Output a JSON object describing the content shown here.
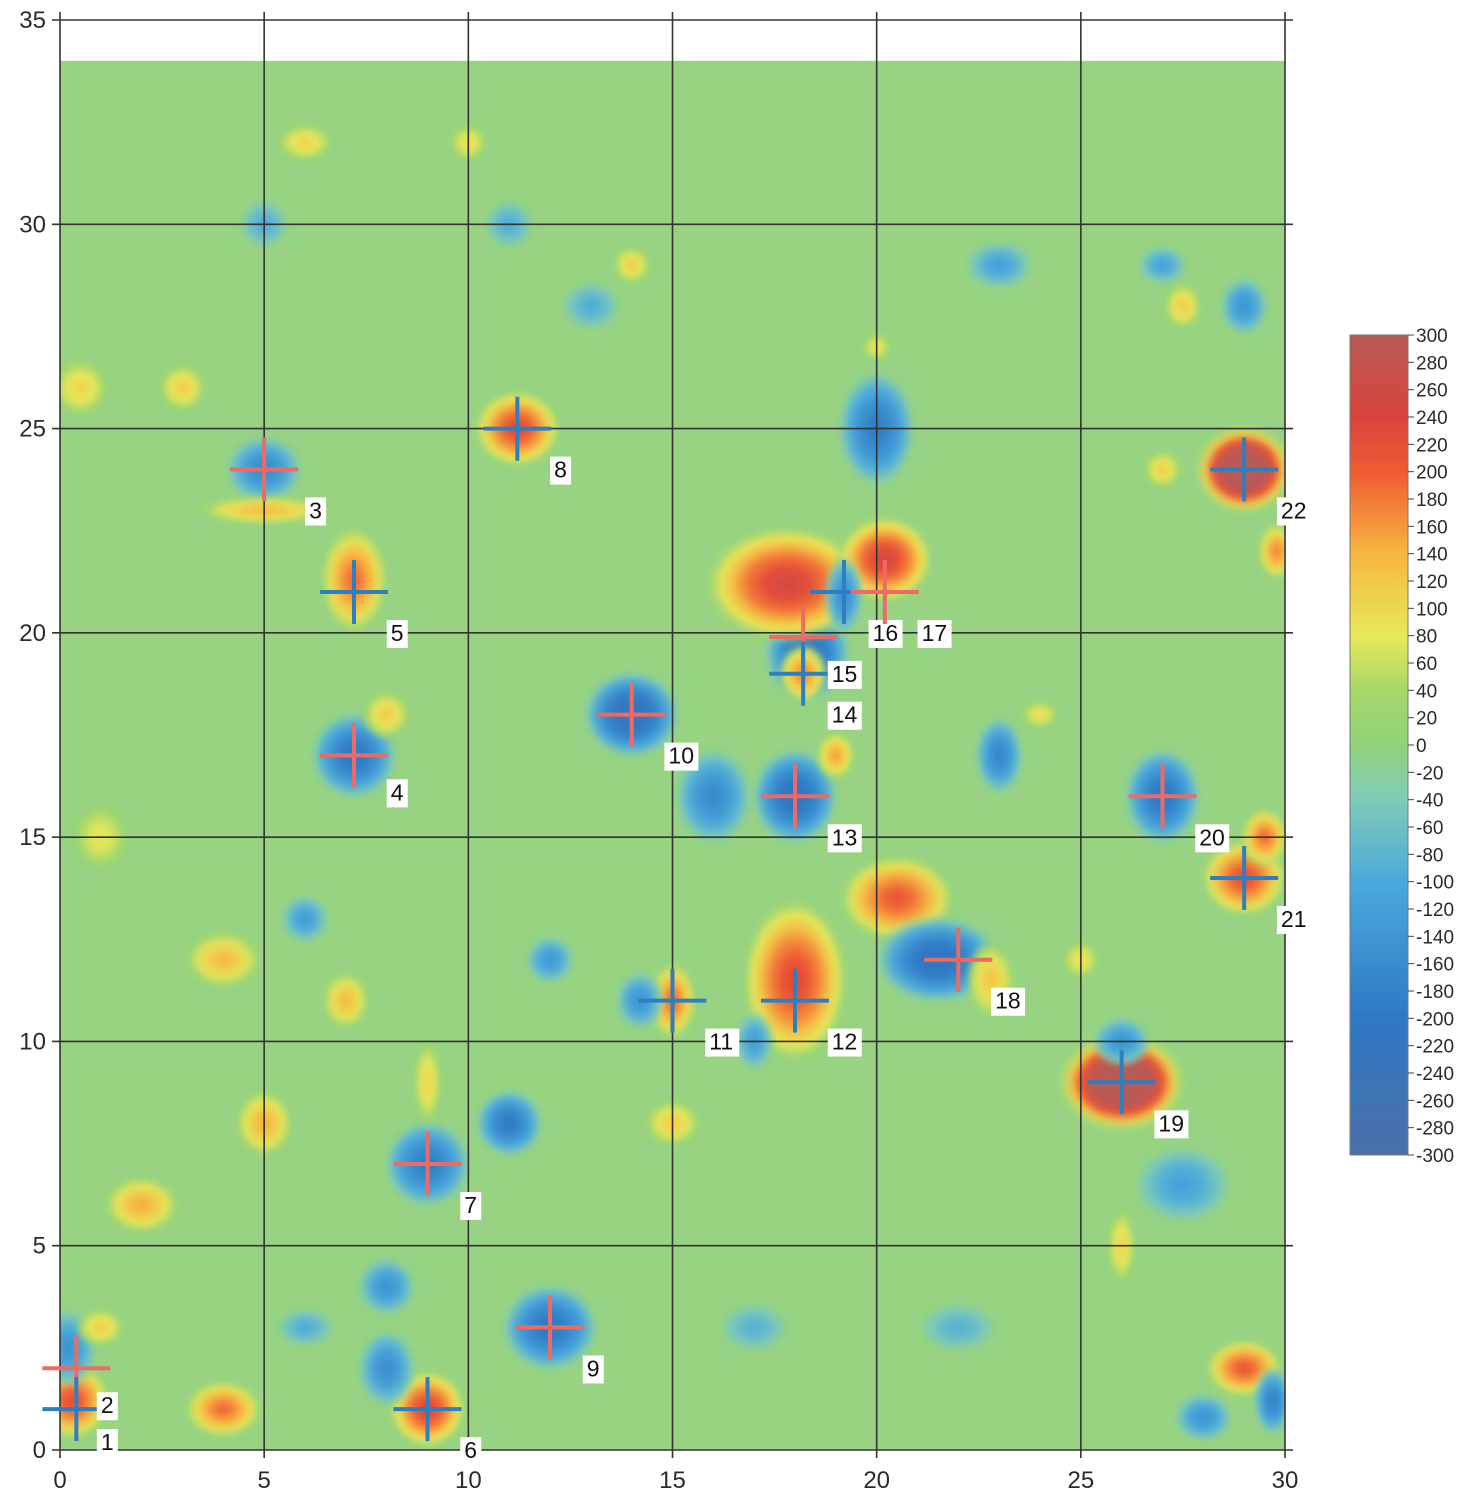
{
  "chart_data": {
    "type": "heatmap",
    "title": "",
    "xlabel": "",
    "ylabel": "",
    "xlim": [
      0,
      30
    ],
    "ylim": [
      0,
      35
    ],
    "data_extent": {
      "x": [
        0,
        30
      ],
      "y": [
        0,
        34
      ]
    },
    "x_ticks": [
      "0",
      "5",
      "10",
      "15",
      "20",
      "25",
      "30"
    ],
    "y_ticks": [
      "0",
      "5",
      "10",
      "15",
      "20",
      "25",
      "30",
      "35"
    ],
    "grid": true,
    "colormap": {
      "stops": [
        {
          "value": -300,
          "color": "#4a6fa8"
        },
        {
          "value": -200,
          "color": "#2e78c4"
        },
        {
          "value": -100,
          "color": "#4aa9dc"
        },
        {
          "value": -40,
          "color": "#7fcbb8"
        },
        {
          "value": 0,
          "color": "#8fd17a"
        },
        {
          "value": 40,
          "color": "#a6d86a"
        },
        {
          "value": 80,
          "color": "#e8e85a"
        },
        {
          "value": 140,
          "color": "#f6b640"
        },
        {
          "value": 200,
          "color": "#f05a34"
        },
        {
          "value": 240,
          "color": "#d8443c"
        },
        {
          "value": 300,
          "color": "#b85a55"
        }
      ],
      "background_color": "#97d382"
    },
    "colorbar": {
      "placement": "right",
      "min": -300,
      "max": 300,
      "ticks": [
        "300",
        "280",
        "260",
        "240",
        "220",
        "200",
        "180",
        "160",
        "140",
        "120",
        "100",
        "80",
        "60",
        "40",
        "20",
        "0",
        "-20",
        "-40",
        "-60",
        "-80",
        "-100",
        "-120",
        "-140",
        "-160",
        "-180",
        "-200",
        "-220",
        "-240",
        "-260",
        "-280",
        "-300"
      ]
    },
    "anomalies": [
      {
        "x": 0.3,
        "y": 1.2,
        "value": 230,
        "rx": 0.8,
        "ry": 0.8
      },
      {
        "x": 0.2,
        "y": 2.5,
        "value": -150,
        "rx": 0.6,
        "ry": 0.8
      },
      {
        "x": 4,
        "y": 1,
        "value": 200,
        "rx": 0.8,
        "ry": 0.6
      },
      {
        "x": 9,
        "y": 1,
        "value": 250,
        "rx": 0.8,
        "ry": 0.8
      },
      {
        "x": 8,
        "y": 2,
        "value": -160,
        "rx": 0.6,
        "ry": 0.8
      },
      {
        "x": 8,
        "y": 4,
        "value": -150,
        "rx": 0.6,
        "ry": 0.6
      },
      {
        "x": 12,
        "y": 3,
        "value": -220,
        "rx": 1.0,
        "ry": 0.9
      },
      {
        "x": 11,
        "y": 8,
        "value": -210,
        "rx": 0.7,
        "ry": 0.7
      },
      {
        "x": 9,
        "y": 7,
        "value": -200,
        "rx": 0.9,
        "ry": 0.9
      },
      {
        "x": 9,
        "y": 9,
        "value": 110,
        "rx": 0.3,
        "ry": 0.9
      },
      {
        "x": 5,
        "y": 8,
        "value": 150,
        "rx": 0.6,
        "ry": 0.7
      },
      {
        "x": 2,
        "y": 6,
        "value": 150,
        "rx": 0.8,
        "ry": 0.6
      },
      {
        "x": 4,
        "y": 12,
        "value": 140,
        "rx": 0.8,
        "ry": 0.6
      },
      {
        "x": 7,
        "y": 11,
        "value": 140,
        "rx": 0.5,
        "ry": 0.6
      },
      {
        "x": 6,
        "y": 13,
        "value": -130,
        "rx": 0.5,
        "ry": 0.5
      },
      {
        "x": 7.2,
        "y": 17,
        "value": -220,
        "rx": 0.9,
        "ry": 0.9
      },
      {
        "x": 7.2,
        "y": 21.3,
        "value": 200,
        "rx": 0.7,
        "ry": 1.1
      },
      {
        "x": 5,
        "y": 24,
        "value": -170,
        "rx": 0.8,
        "ry": 0.7
      },
      {
        "x": 5,
        "y": 23,
        "value": 140,
        "rx": 1.4,
        "ry": 0.3
      },
      {
        "x": 11.2,
        "y": 25,
        "value": 240,
        "rx": 0.9,
        "ry": 0.8
      },
      {
        "x": 8,
        "y": 18,
        "value": 120,
        "rx": 0.5,
        "ry": 0.5
      },
      {
        "x": 14,
        "y": 18,
        "value": -260,
        "rx": 1.0,
        "ry": 0.9
      },
      {
        "x": 16,
        "y": 16,
        "value": -170,
        "rx": 0.8,
        "ry": 1.0
      },
      {
        "x": 18,
        "y": 16,
        "value": -240,
        "rx": 0.9,
        "ry": 1.0
      },
      {
        "x": 18.3,
        "y": 19.5,
        "value": -250,
        "rx": 0.9,
        "ry": 1.0
      },
      {
        "x": 17.8,
        "y": 21.2,
        "value": 260,
        "rx": 1.7,
        "ry": 1.2
      },
      {
        "x": 20.2,
        "y": 21.8,
        "value": 260,
        "rx": 1.0,
        "ry": 0.9
      },
      {
        "x": 19.2,
        "y": 20.9,
        "value": -160,
        "rx": 0.4,
        "ry": 0.8
      },
      {
        "x": 18.2,
        "y": 19,
        "value": 180,
        "rx": 0.5,
        "ry": 0.6
      },
      {
        "x": 19,
        "y": 17,
        "value": 160,
        "rx": 0.4,
        "ry": 0.5
      },
      {
        "x": 20,
        "y": 25,
        "value": -200,
        "rx": 0.8,
        "ry": 1.2
      },
      {
        "x": 20.5,
        "y": 13.5,
        "value": 220,
        "rx": 1.2,
        "ry": 0.9
      },
      {
        "x": 21.5,
        "y": 12,
        "value": -240,
        "rx": 1.3,
        "ry": 0.9
      },
      {
        "x": 18,
        "y": 11.5,
        "value": 240,
        "rx": 1.1,
        "ry": 1.7
      },
      {
        "x": 15,
        "y": 11,
        "value": 200,
        "rx": 0.5,
        "ry": 0.8
      },
      {
        "x": 14.2,
        "y": 11,
        "value": -150,
        "rx": 0.5,
        "ry": 0.6
      },
      {
        "x": 17,
        "y": 10,
        "value": -130,
        "rx": 0.4,
        "ry": 0.6
      },
      {
        "x": 12,
        "y": 12,
        "value": -140,
        "rx": 0.5,
        "ry": 0.5
      },
      {
        "x": 15,
        "y": 8,
        "value": 120,
        "rx": 0.6,
        "ry": 0.5
      },
      {
        "x": 26,
        "y": 9,
        "value": 300,
        "rx": 1.3,
        "ry": 1.0,
        "flat": true
      },
      {
        "x": 26,
        "y": 10,
        "value": -150,
        "rx": 0.6,
        "ry": 0.5
      },
      {
        "x": 27,
        "y": 16,
        "value": -220,
        "rx": 0.8,
        "ry": 1.0
      },
      {
        "x": 29,
        "y": 14,
        "value": 230,
        "rx": 0.9,
        "ry": 0.8
      },
      {
        "x": 29.5,
        "y": 15,
        "value": 200,
        "rx": 0.5,
        "ry": 0.6
      },
      {
        "x": 29,
        "y": 24,
        "value": 300,
        "rx": 1.0,
        "ry": 0.9,
        "flat": true
      },
      {
        "x": 29.8,
        "y": 22,
        "value": 180,
        "rx": 0.4,
        "ry": 0.6
      },
      {
        "x": 29,
        "y": 28,
        "value": -150,
        "rx": 0.5,
        "ry": 0.6
      },
      {
        "x": 29,
        "y": 2,
        "value": 220,
        "rx": 0.8,
        "ry": 0.6
      },
      {
        "x": 28,
        "y": 0.8,
        "value": -150,
        "rx": 0.6,
        "ry": 0.5
      },
      {
        "x": 23,
        "y": 17,
        "value": -180,
        "rx": 0.5,
        "ry": 0.8
      },
      {
        "x": 22.8,
        "y": 11.5,
        "value": 130,
        "rx": 0.5,
        "ry": 0.8
      },
      {
        "x": 27.5,
        "y": 6.5,
        "value": -120,
        "rx": 1.0,
        "ry": 0.8
      },
      {
        "x": 27.5,
        "y": 28,
        "value": 120,
        "rx": 0.4,
        "ry": 0.5
      },
      {
        "x": 27,
        "y": 29,
        "value": -120,
        "rx": 0.5,
        "ry": 0.4
      },
      {
        "x": 23,
        "y": 29,
        "value": -120,
        "rx": 0.7,
        "ry": 0.5
      },
      {
        "x": 14,
        "y": 29,
        "value": 120,
        "rx": 0.4,
        "ry": 0.4
      },
      {
        "x": 11,
        "y": 30,
        "value": -100,
        "rx": 0.5,
        "ry": 0.5
      },
      {
        "x": 3,
        "y": 26,
        "value": 120,
        "rx": 0.5,
        "ry": 0.5
      },
      {
        "x": 0.5,
        "y": 26,
        "value": 110,
        "rx": 0.6,
        "ry": 0.6
      },
      {
        "x": 1,
        "y": 15,
        "value": 90,
        "rx": 0.6,
        "ry": 0.7
      },
      {
        "x": 10,
        "y": 32,
        "value": 100,
        "rx": 0.4,
        "ry": 0.4
      },
      {
        "x": 6,
        "y": 32,
        "value": 110,
        "rx": 0.6,
        "ry": 0.4
      },
      {
        "x": 5,
        "y": 30,
        "value": -100,
        "rx": 0.5,
        "ry": 0.5
      },
      {
        "x": 13,
        "y": 28,
        "value": -100,
        "rx": 0.6,
        "ry": 0.5
      },
      {
        "x": 27,
        "y": 24,
        "value": 120,
        "rx": 0.4,
        "ry": 0.4
      },
      {
        "x": 20,
        "y": 27,
        "value": 100,
        "rx": 0.3,
        "ry": 0.3
      },
      {
        "x": 24,
        "y": 18,
        "value": 100,
        "rx": 0.4,
        "ry": 0.3
      },
      {
        "x": 6,
        "y": 3,
        "value": -100,
        "rx": 0.6,
        "ry": 0.4
      },
      {
        "x": 1,
        "y": 3,
        "value": 120,
        "rx": 0.5,
        "ry": 0.4
      },
      {
        "x": 22,
        "y": 3,
        "value": -90,
        "rx": 0.8,
        "ry": 0.5
      },
      {
        "x": 17,
        "y": 3,
        "value": -90,
        "rx": 0.7,
        "ry": 0.5
      },
      {
        "x": 26,
        "y": 5,
        "value": 110,
        "rx": 0.3,
        "ry": 0.8
      },
      {
        "x": 25,
        "y": 12,
        "value": 100,
        "rx": 0.4,
        "ry": 0.4
      },
      {
        "x": 29.7,
        "y": 1.2,
        "value": -190,
        "rx": 0.4,
        "ry": 0.7
      }
    ],
    "markers": [
      {
        "label": "1",
        "x": 0.4,
        "y": 2,
        "h_color": "#ee6a64",
        "v_color": "#ee6a64",
        "label_x": 1.0,
        "label_y": 0.0
      },
      {
        "label": "2",
        "x": 0.4,
        "y": 1,
        "h_color": "#2e7fc0",
        "v_color": "#2e7fc0",
        "label_x": 1.0,
        "label_y": 0.9
      },
      {
        "label": "3",
        "x": 5,
        "y": 24,
        "h_color": "#ee6a64",
        "v_color": "#ee6a64",
        "label_x": 6.1,
        "label_y": 22.8
      },
      {
        "label": "4",
        "x": 7.2,
        "y": 17,
        "h_color": "#ee6a64",
        "v_color": "#ee6a64",
        "label_x": 8.1,
        "label_y": 15.9
      },
      {
        "label": "5",
        "x": 7.2,
        "y": 21,
        "h_color": "#2e7fc0",
        "v_color": "#2e7fc0",
        "label_x": 8.1,
        "label_y": 19.8
      },
      {
        "label": "6",
        "x": 9,
        "y": 1,
        "h_color": "#2e7fc0",
        "v_color": "#2e7fc0",
        "label_x": 9.9,
        "label_y": -0.2
      },
      {
        "label": "7",
        "x": 9,
        "y": 7,
        "h_color": "#ee6a64",
        "v_color": "#ee6a64",
        "label_x": 9.9,
        "label_y": 5.8
      },
      {
        "label": "8",
        "x": 11.2,
        "y": 25,
        "h_color": "#2e7fc0",
        "v_color": "#2e7fc0",
        "label_x": 12.1,
        "label_y": 23.8
      },
      {
        "label": "9",
        "x": 12,
        "y": 3,
        "h_color": "#ee6a64",
        "v_color": "#ee6a64",
        "label_x": 12.9,
        "label_y": 1.8
      },
      {
        "label": "10",
        "x": 14,
        "y": 18,
        "h_color": "#ee6a64",
        "v_color": "#ee6a64",
        "label_x": 14.9,
        "label_y": 16.8
      },
      {
        "label": "11",
        "x": 15,
        "y": 11,
        "h_color": "#2e7fc0",
        "v_color": "#2e7fc0",
        "label_x": 15.9,
        "label_y": 9.8
      },
      {
        "label": "12",
        "x": 18,
        "y": 11,
        "h_color": "#2e7fc0",
        "v_color": "#2e7fc0",
        "label_x": 18.9,
        "label_y": 9.8
      },
      {
        "label": "13",
        "x": 18,
        "y": 16,
        "h_color": "#ee6a64",
        "v_color": "#ee6a64",
        "label_x": 18.9,
        "label_y": 14.8
      },
      {
        "label": "14",
        "x": 18.2,
        "y": 19.9,
        "h_color": "#ee6a64",
        "v_color": "#ee6a64",
        "label_x": 18.9,
        "label_y": 17.8
      },
      {
        "label": "15",
        "x": 18.2,
        "y": 19,
        "h_color": "#2e7fc0",
        "v_color": "#2e7fc0",
        "label_x": 18.9,
        "label_y": 18.8
      },
      {
        "label": "16",
        "x": 19.2,
        "y": 21,
        "h_color": "#2e7fc0",
        "v_color": "#2e7fc0",
        "label_x": 19.9,
        "label_y": 19.8
      },
      {
        "label": "17",
        "x": 20.2,
        "y": 21,
        "h_color": "#ee6a64",
        "v_color": "#ee6a64",
        "label_x": 21.1,
        "label_y": 19.8
      },
      {
        "label": "18",
        "x": 22,
        "y": 12,
        "h_color": "#ee6a64",
        "v_color": "#ee6a64",
        "label_x": 22.9,
        "label_y": 10.8
      },
      {
        "label": "19",
        "x": 26,
        "y": 9,
        "h_color": "#2e7fc0",
        "v_color": "#2e7fc0",
        "label_x": 26.9,
        "label_y": 7.8
      },
      {
        "label": "20",
        "x": 27,
        "y": 16,
        "h_color": "#ee6a64",
        "v_color": "#ee6a64",
        "label_x": 27.9,
        "label_y": 14.8
      },
      {
        "label": "21",
        "x": 29,
        "y": 14,
        "h_color": "#2e7fc0",
        "v_color": "#2e7fc0",
        "label_x": 29.9,
        "label_y": 12.8
      },
      {
        "label": "22",
        "x": 29,
        "y": 24,
        "h_color": "#2e7fc0",
        "v_color": "#2e7fc0",
        "label_x": 29.9,
        "label_y": 22.8
      }
    ]
  }
}
